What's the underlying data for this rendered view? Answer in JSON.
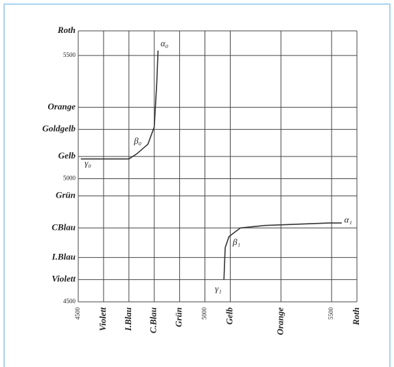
{
  "chart_data": {
    "type": "line",
    "xlim": [
      4500,
      5600
    ],
    "ylim": [
      4500,
      5600
    ],
    "xticks": [
      4500,
      {
        "value": 4600,
        "label": "Violett"
      },
      {
        "value": 4700,
        "label": "I.Blau"
      },
      {
        "value": 4800,
        "label": "C.Blau"
      },
      {
        "value": 4900,
        "label": "Grün"
      },
      5000,
      {
        "value": 5100,
        "label": "Gelb"
      },
      {
        "value": 5300,
        "label": "Orange"
      },
      5500,
      {
        "value": 5600,
        "label": "Roth"
      }
    ],
    "yticks": [
      4500,
      {
        "value": 4590,
        "label": "Violett"
      },
      {
        "value": 4680,
        "label": "I.Blau"
      },
      {
        "value": 4800,
        "label": "CBlau"
      },
      {
        "value": 4930,
        "label": "Grün"
      },
      5000,
      {
        "value": 5090,
        "label": "Gelb"
      },
      {
        "value": 5200,
        "label": "Goldgelb"
      },
      {
        "value": 5290,
        "label": "Orange"
      },
      5500,
      {
        "value": 5600,
        "label": "Roth"
      }
    ],
    "grid": true,
    "series": [
      {
        "color": "#333333",
        "x": [
          4510,
          4600,
          4700,
          4730,
          4775,
          4800,
          4810,
          4815
        ],
        "values": [
          5080,
          5080,
          5080,
          5100,
          5140,
          5210,
          5390,
          5520
        ]
      },
      {
        "color": "#333333",
        "x": [
          5075,
          5080,
          5095,
          5140,
          5235,
          5490,
          5540
        ],
        "values": [
          4590,
          4720,
          4765,
          4800,
          4810,
          4820,
          4820
        ]
      }
    ],
    "annotations": [
      {
        "text": "α₀",
        "x": 4825,
        "y": 5545
      },
      {
        "text": "β₀",
        "x": 4720,
        "y": 5150
      },
      {
        "text": "γ₀",
        "x": 4525,
        "y": 5060
      },
      {
        "text": "α₁",
        "x": 5550,
        "y": 4830
      },
      {
        "text": "β₁",
        "x": 5110,
        "y": 4740
      },
      {
        "text": "γ₁",
        "x": 5040,
        "y": 4550
      }
    ]
  }
}
